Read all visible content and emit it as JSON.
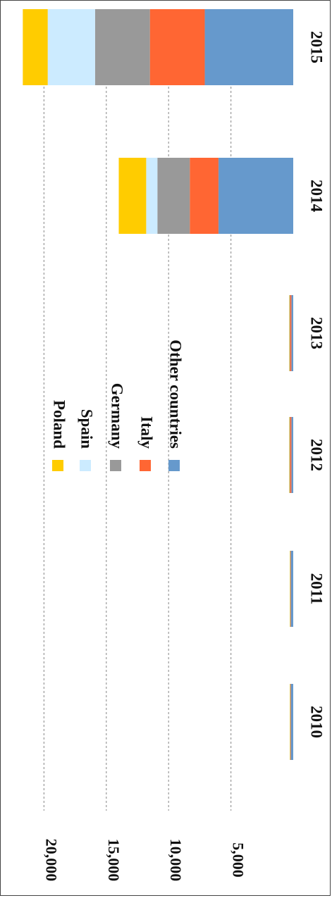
{
  "chart_data": {
    "type": "bar",
    "stacked": true,
    "orientation": "vertical (figure rotated 90 degrees clockwise)",
    "categories": [
      "2010",
      "2011",
      "2012",
      "2013",
      "2014",
      "2015"
    ],
    "series": [
      {
        "name": "Other countries",
        "color": "#6699CC",
        "values": [
          200,
          200,
          150,
          150,
          6000,
          7100
        ]
      },
      {
        "name": "Italy",
        "color": "#FF6633",
        "values": [
          40,
          30,
          100,
          100,
          2300,
          4400
        ]
      },
      {
        "name": "Germany",
        "color": "#999999",
        "values": [
          20,
          30,
          50,
          50,
          2600,
          4400
        ]
      },
      {
        "name": "Spain",
        "color": "#CCEBFF",
        "values": [
          10,
          10,
          20,
          20,
          900,
          3800
        ]
      },
      {
        "name": "Poland",
        "color": "#FFCC00",
        "values": [
          10,
          10,
          20,
          20,
          2200,
          2000
        ]
      }
    ],
    "yticks": [
      "5,000",
      "10,000",
      "15,000",
      "20,000"
    ],
    "ytick_values": [
      5000,
      10000,
      15000,
      20000
    ],
    "ylim": [
      0,
      21500
    ],
    "grid": true,
    "legend_position": "center",
    "legend_order": [
      "Poland",
      "Spain",
      "Germany",
      "Italy",
      "Other countries"
    ],
    "title": "",
    "xlabel": "",
    "ylabel": ""
  }
}
